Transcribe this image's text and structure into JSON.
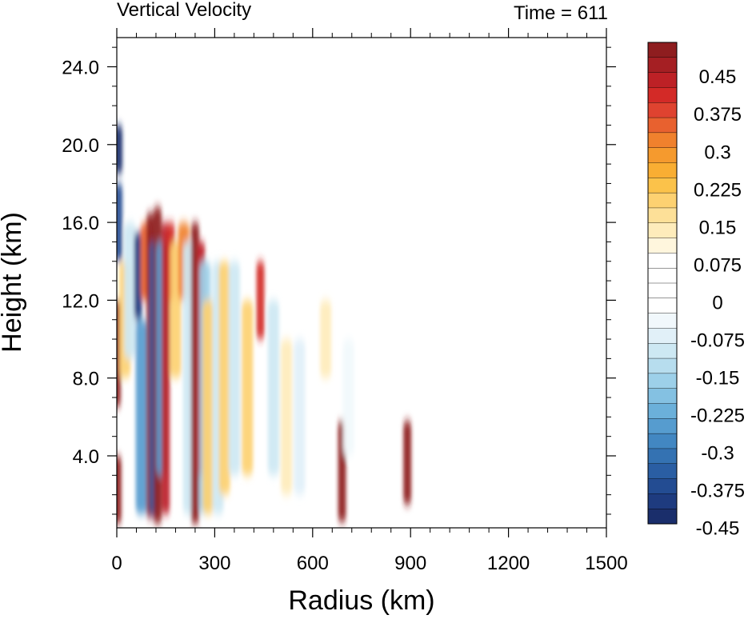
{
  "chart_data": {
    "type": "heatmap",
    "title": "Vertical Velocity",
    "right_title": "Time = 611",
    "xlabel": "Radius (km)",
    "ylabel": "Height (km)",
    "xlim": [
      0,
      1500
    ],
    "ylim": [
      0.3,
      25.5
    ],
    "x_ticks": [
      {
        "v": 0,
        "label": "0"
      },
      {
        "v": 300,
        "label": "300"
      },
      {
        "v": 600,
        "label": "600"
      },
      {
        "v": 900,
        "label": "900"
      },
      {
        "v": 1200,
        "label": "1200"
      },
      {
        "v": 1500,
        "label": "1500"
      }
    ],
    "y_ticks": [
      {
        "v": 4,
        "label": "4.0"
      },
      {
        "v": 8,
        "label": "8.0"
      },
      {
        "v": 12,
        "label": "12.0"
      },
      {
        "v": 16,
        "label": "16.0"
      },
      {
        "v": 20,
        "label": "20.0"
      },
      {
        "v": 24,
        "label": "24.0"
      }
    ],
    "colorbar": {
      "levels": [
        "0.45",
        "0.375",
        "0.3",
        "0.225",
        "0.15",
        "0.075",
        "0",
        "-0.075",
        "-0.15",
        "-0.225",
        "-0.3",
        "-0.375",
        "-0.45"
      ],
      "colors": [
        "#8e1d1f",
        "#a51f23",
        "#bd2126",
        "#d32a27",
        "#df4330",
        "#e8612f",
        "#f0812d",
        "#f59a2e",
        "#f9ae33",
        "#fbc24a",
        "#fdd171",
        "#fde098",
        "#feecbb",
        "#fff6dd",
        "#ffffff",
        "#ffffff",
        "#ffffff",
        "#ffffff",
        "#f1f8fc",
        "#e1f0f8",
        "#cde8f3",
        "#b7ddee",
        "#9dd0e9",
        "#84c1e2",
        "#6bb0da",
        "#569ccf",
        "#4287c2",
        "#3472b2",
        "#2a5ea3",
        "#234c92",
        "#1e3b7f",
        "#1a2e6b"
      ]
    },
    "features": [
      {
        "r": 0,
        "z0": 6.5,
        "z1": 12,
        "w": 0.7
      },
      {
        "r": 2,
        "z0": 0.5,
        "z1": 4,
        "w": 0.6
      },
      {
        "r": 5,
        "z0": 14,
        "z1": 18,
        "w": -0.5
      },
      {
        "r": 5,
        "z0": 18.5,
        "z1": 21,
        "w": -0.6
      },
      {
        "r": 25,
        "z0": 8,
        "z1": 14,
        "w": 0.2
      },
      {
        "r": 40,
        "z0": 9,
        "z1": 16,
        "w": -0.15
      },
      {
        "r": 65,
        "z0": 11,
        "z1": 15.5,
        "w": -0.55
      },
      {
        "r": 75,
        "z0": 1,
        "z1": 11,
        "w": -0.35
      },
      {
        "r": 90,
        "z0": 12,
        "z1": 16,
        "w": 0.4
      },
      {
        "r": 103,
        "z0": 0.8,
        "z1": 16.5,
        "w": 0.8
      },
      {
        "r": 113,
        "z0": 1,
        "z1": 15,
        "w": -0.45
      },
      {
        "r": 125,
        "z0": 0.5,
        "z1": 16.8,
        "w": 0.8
      },
      {
        "r": 138,
        "z0": 3,
        "z1": 15,
        "w": -0.35
      },
      {
        "r": 150,
        "z0": 1,
        "z1": 16,
        "w": 0.5
      },
      {
        "r": 165,
        "z0": 12,
        "z1": 16,
        "w": 0.45
      },
      {
        "r": 180,
        "z0": 8,
        "z1": 15,
        "w": 0.2
      },
      {
        "r": 205,
        "z0": 12,
        "z1": 16,
        "w": 0.35
      },
      {
        "r": 220,
        "z0": 1,
        "z1": 15,
        "w": -0.15
      },
      {
        "r": 240,
        "z0": 0.5,
        "z1": 16,
        "w": 0.7
      },
      {
        "r": 258,
        "z0": 3,
        "z1": 15,
        "w": 0.5
      },
      {
        "r": 270,
        "z0": 1,
        "z1": 14,
        "w": -0.25
      },
      {
        "r": 280,
        "z0": 1,
        "z1": 12,
        "w": 0.2
      },
      {
        "r": 310,
        "z0": 1,
        "z1": 14,
        "w": -0.15
      },
      {
        "r": 330,
        "z0": 2,
        "z1": 14,
        "w": 0.2
      },
      {
        "r": 360,
        "z0": 3,
        "z1": 14,
        "w": -0.15
      },
      {
        "r": 400,
        "z0": 3,
        "z1": 12,
        "w": 0.2
      },
      {
        "r": 440,
        "z0": 10,
        "z1": 14,
        "w": 0.45
      },
      {
        "r": 480,
        "z0": 3,
        "z1": 12,
        "w": -0.15
      },
      {
        "r": 520,
        "z0": 2,
        "z1": 10,
        "w": 0.15
      },
      {
        "r": 560,
        "z0": 2,
        "z1": 10,
        "w": -0.12
      },
      {
        "r": 640,
        "z0": 8,
        "z1": 12,
        "w": 0.15
      },
      {
        "r": 690,
        "z0": 0.6,
        "z1": 5.8,
        "w": 0.75
      },
      {
        "r": 890,
        "z0": 1.5,
        "z1": 5.8,
        "w": 0.6
      },
      {
        "r": 710,
        "z0": 4,
        "z1": 10,
        "w": -0.1
      }
    ]
  }
}
